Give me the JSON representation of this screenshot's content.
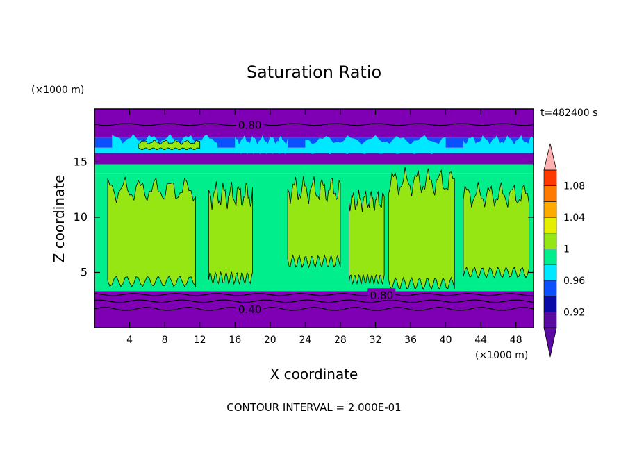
{
  "chart_data": {
    "type": "heatmap",
    "title": "Saturation Ratio",
    "xlabel": "X coordinate",
    "ylabel": "Z coordinate",
    "x_unit": "(×1000 m)",
    "y_unit": "(×1000 m)",
    "time_label": "t=482400 s",
    "footer": "CONTOUR INTERVAL = 2.000E-01",
    "xlim": [
      0,
      50
    ],
    "ylim": [
      0,
      19.8
    ],
    "x_ticks": [
      4,
      8,
      12,
      16,
      20,
      24,
      28,
      32,
      36,
      40,
      44,
      48
    ],
    "y_ticks": [
      5,
      10,
      15
    ],
    "contour_labels": [
      {
        "text": "0.80",
        "x": 17.7,
        "y": 18.4
      },
      {
        "text": "0.80",
        "x": 32.7,
        "y": 3.0
      },
      {
        "text": "0.40",
        "x": 17.7,
        "y": 1.7
      }
    ],
    "colorbar": {
      "levels": [
        0.9,
        0.92,
        0.94,
        0.96,
        0.98,
        1.0,
        1.02,
        1.04,
        1.06,
        1.08,
        1.1
      ],
      "tick_labels": [
        "0.92",
        "0.96",
        "1",
        "1.04",
        "1.08"
      ],
      "colors": [
        "#5a0aa0",
        "#0a0aa8",
        "#0a50ff",
        "#00e8ff",
        "#00ee8c",
        "#96e614",
        "#e6ee00",
        "#ffaa00",
        "#ff7a00",
        "#ff3a00"
      ],
      "under_color": "#5a0aa0",
      "over_color": "#ffb0b0"
    },
    "bands": [
      {
        "z_from": 0.0,
        "z_to": 3.3,
        "level": 0.5,
        "color": "#7f00b4"
      },
      {
        "z_from": 3.3,
        "z_to": 3.8,
        "level": 0.97,
        "color": "#00ee8c"
      },
      {
        "z_from": 3.8,
        "z_to": 14.0,
        "level": 0.99,
        "color": "#00ee8c"
      },
      {
        "z_from": 14.0,
        "z_to": 14.8,
        "level": 0.97,
        "color": "#00ee8c"
      },
      {
        "z_from": 14.8,
        "z_to": 15.8,
        "level": 0.9,
        "color": "#7f00b4"
      },
      {
        "z_from": 15.8,
        "z_to": 16.3,
        "level": 0.96,
        "color": "#00e8ff"
      },
      {
        "z_from": 16.3,
        "z_to": 17.2,
        "level": 0.93,
        "color": "#0a50ff"
      },
      {
        "z_from": 17.2,
        "z_to": 19.8,
        "level": 0.7,
        "color": "#7f00b4"
      }
    ]
  }
}
